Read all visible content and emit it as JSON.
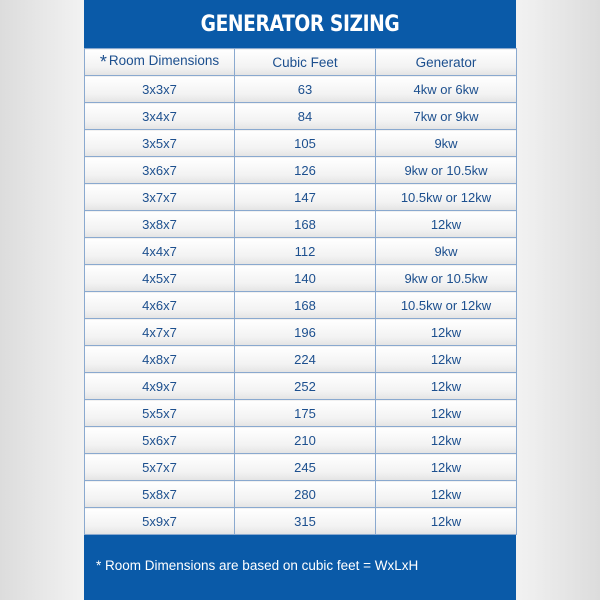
{
  "title": "GENERATOR SIZING",
  "columns": {
    "star": "*",
    "room": "Room Dimensions",
    "cubic": "Cubic Feet",
    "generator": "Generator"
  },
  "rows": [
    [
      "3x3x7",
      "63",
      "4kw or 6kw"
    ],
    [
      "3x4x7",
      "84",
      "7kw or 9kw"
    ],
    [
      "3x5x7",
      "105",
      "9kw"
    ],
    [
      "3x6x7",
      "126",
      "9kw or 10.5kw"
    ],
    [
      "3x7x7",
      "147",
      "10.5kw or 12kw"
    ],
    [
      "3x8x7",
      "168",
      "12kw"
    ],
    [
      "4x4x7",
      "112",
      "9kw"
    ],
    [
      "4x5x7",
      "140",
      "9kw or 10.5kw"
    ],
    [
      "4x6x7",
      "168",
      "10.5kw or 12kw"
    ],
    [
      "4x7x7",
      "196",
      "12kw"
    ],
    [
      "4x8x7",
      "224",
      "12kw"
    ],
    [
      "4x9x7",
      "252",
      "12kw"
    ],
    [
      "5x5x7",
      "175",
      "12kw"
    ],
    [
      "5x6x7",
      "210",
      "12kw"
    ],
    [
      "5x7x7",
      "245",
      "12kw"
    ],
    [
      "5x8x7",
      "280",
      "12kw"
    ],
    [
      "5x9x7",
      "315",
      "12kw"
    ]
  ],
  "footnote": "* Room Dimensions are based on cubic feet = WxLxH",
  "colors": {
    "brand_blue": "#0a5aa8",
    "text_blue": "#1c4f8e"
  }
}
